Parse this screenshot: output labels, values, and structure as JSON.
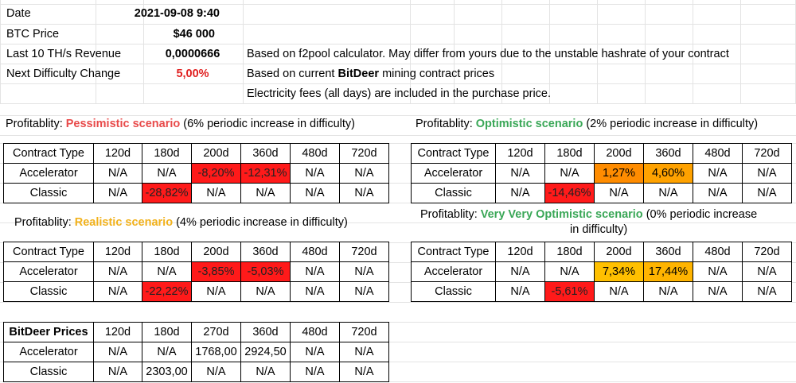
{
  "summary": {
    "date_label": "Date",
    "date_value": "2021-09-08 9:40",
    "btc_label": "BTC Price",
    "btc_value": "$46 000",
    "revenue_label": "Last 10 TH/s Revenue",
    "revenue_value": "0,0000666",
    "difficulty_label": "Next Difficulty Change",
    "difficulty_value": "5,00%",
    "note_1": "Based on f2pool calculator. May differ from yours due to the unstable hashrate of your contract",
    "note_2_pre": "Based on current ",
    "note_2_bold": "BitDeer",
    "note_2_post": " mining contract prices",
    "note_3": "Electricity fees (all days) are included in the purchase price."
  },
  "colors": {
    "negative": "#ff1a1a",
    "positive_orange": "#ff8c00",
    "positive_yellow": "#ffc000",
    "pessimistic_text": "#e84a4a",
    "optimistic_text": "#3aa757",
    "realistic_text": "#f2b21c",
    "difficulty_text": "#e02020"
  },
  "scenarios": {
    "pessimistic": {
      "prefix": "Profitablity: ",
      "name": "Pessimistic scenario",
      "suffix": " (6% periodic increase in difficulty)",
      "header": [
        "Contract Type",
        "120d",
        "180d",
        "200d",
        "360d",
        "480d",
        "720d"
      ],
      "accelerator": [
        "Accelerator",
        "N/A",
        "N/A",
        "-8,20%",
        "-12,31%",
        "N/A",
        "N/A"
      ],
      "classic": [
        "Classic",
        "N/A",
        "-28,82%",
        "N/A",
        "N/A",
        "N/A",
        "N/A"
      ]
    },
    "optimistic": {
      "prefix": "Profitablity: ",
      "name": "Optimistic scenario",
      "suffix": " (2% periodic increase in difficulty)",
      "header": [
        "Contract Type",
        "120d",
        "180d",
        "200d",
        "360d",
        "480d",
        "720d"
      ],
      "accelerator": [
        "Accelerator",
        "N/A",
        "N/A",
        "1,27%",
        "4,60%",
        "N/A",
        "N/A"
      ],
      "classic": [
        "Classic",
        "N/A",
        "-14,46%",
        "N/A",
        "N/A",
        "N/A",
        "N/A"
      ]
    },
    "realistic": {
      "prefix": "Profitablity: ",
      "name": "Realistic scenario",
      "suffix": " (4% periodic increase in difficulty)",
      "header": [
        "Contract Type",
        "120d",
        "180d",
        "200d",
        "360d",
        "480d",
        "720d"
      ],
      "accelerator": [
        "Accelerator",
        "N/A",
        "N/A",
        "-3,85%",
        "-5,03%",
        "N/A",
        "N/A"
      ],
      "classic": [
        "Classic",
        "N/A",
        "-22,22%",
        "N/A",
        "N/A",
        "N/A",
        "N/A"
      ]
    },
    "very_optimistic": {
      "prefix": "Profitablity: ",
      "name": "Very Very Optimistic scenario",
      "suffix": " (0% periodic increase",
      "suffix_line2": "in difficulty)",
      "header": [
        "Contract Type",
        "120d",
        "180d",
        "200d",
        "360d",
        "480d",
        "720d"
      ],
      "accelerator": [
        "Accelerator",
        "N/A",
        "N/A",
        "7,34%",
        "17,44%",
        "N/A",
        "N/A"
      ],
      "classic": [
        "Classic",
        "N/A",
        "-5,61%",
        "N/A",
        "N/A",
        "N/A",
        "N/A"
      ]
    }
  },
  "prices": {
    "header": [
      "BitDeer Prices",
      "120d",
      "180d",
      "270d",
      "360d",
      "480d",
      "720d"
    ],
    "accelerator": [
      "Accelerator",
      "N/A",
      "N/A",
      "1768,00",
      "2924,50",
      "N/A",
      "N/A"
    ],
    "classic": [
      "Classic",
      "N/A",
      "2303,00",
      "N/A",
      "N/A",
      "N/A",
      "N/A"
    ]
  }
}
